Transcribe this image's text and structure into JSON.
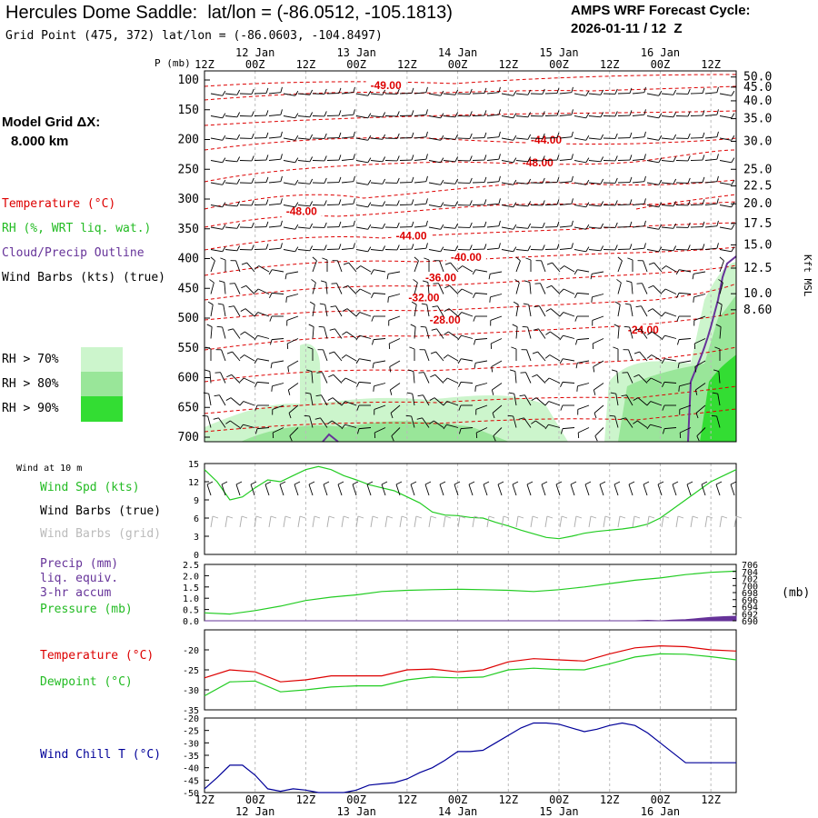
{
  "header": {
    "title": "Hercules Dome Saddle:  lat/lon = (-86.0512, -105.1813)",
    "grid_point": "Grid Point (475, 372) lat/lon = (-86.0603, -104.8497)",
    "cycle_label": "AMPS WRF Forecast Cycle:",
    "cycle_value": "2026-01-11 / 12  Z"
  },
  "model": {
    "grid_label": "Model Grid ΔX:",
    "grid_value": "8.000 km"
  },
  "legend_upper": {
    "temperature": "Temperature (°C)",
    "rh": "RH (%, WRT liq. wat.)",
    "cloud": "Cloud/Precip Outline",
    "wind": "Wind Barbs (kts) (true)",
    "rh70": "RH > 70%",
    "rh80": "RH > 80%",
    "rh90": "RH > 90%"
  },
  "legend_wind": {
    "title": "Wind at 10 m",
    "speed": "Wind Spd (kts)",
    "barbs_true": "Wind Barbs (true)",
    "barbs_grid": "Wind Barbs (grid)"
  },
  "legend_precip": {
    "precip": "Precip (mm)",
    "liq": "liq. equiv.",
    "accum": "3-hr accum",
    "pressure": "Pressure (mb)",
    "mb": "(mb)"
  },
  "legend_temp": {
    "temperature": "Temperature (°C)",
    "dewpoint": "Dewpoint (°C)"
  },
  "legend_chill": {
    "chill": "Wind Chill T (°C)"
  },
  "axis": {
    "p_label": "P (mb)",
    "kft_label": "Kft MSL",
    "top_hours": [
      "12Z",
      "00Z",
      "12Z",
      "00Z",
      "12Z",
      "00Z",
      "12Z",
      "00Z",
      "12Z",
      "00Z",
      "12Z"
    ],
    "date_labels": [
      "12 Jan",
      "13 Jan",
      "14 Jan",
      "15 Jan",
      "16 Jan"
    ]
  },
  "colors": {
    "temp": "#dd0000",
    "dew": "#22cc22",
    "rh70": "#ccf5cc",
    "rh80": "#99e699",
    "rh90": "#33dd33",
    "cloud": "#663399",
    "chill": "#000099",
    "grid": "#bbbbbb"
  },
  "chart_data": [
    {
      "type": "contour",
      "name": "cross-section",
      "x_hours": [
        0,
        126
      ],
      "p_ticks": [
        100,
        150,
        200,
        250,
        300,
        350,
        400,
        450,
        500,
        550,
        600,
        650,
        700
      ],
      "kft_ticks": [
        "50.0",
        "45.0",
        "40.0",
        "35.0",
        "30.0",
        "25.0",
        "22.5",
        "20.0",
        "17.5",
        "15.0",
        "12.5",
        "10.0",
        "8.60"
      ],
      "kft_tick_p": [
        95,
        112,
        135,
        165,
        203,
        250,
        278,
        308,
        341,
        377,
        416,
        459,
        486
      ],
      "temp_labels": [
        {
          "text": "-49.00",
          "hour": 43,
          "p": 115
        },
        {
          "text": "-44.00",
          "hour": 81,
          "p": 207
        },
        {
          "text": "-48.00",
          "hour": 79,
          "p": 245
        },
        {
          "text": "-48.00",
          "hour": 23,
          "p": 327
        },
        {
          "text": "-44.00",
          "hour": 49,
          "p": 368
        },
        {
          "text": "-40.00",
          "hour": 62,
          "p": 404
        },
        {
          "text": "-36.00",
          "hour": 56,
          "p": 438
        },
        {
          "text": "-32.00",
          "hour": 52,
          "p": 472
        },
        {
          "text": "-28.00",
          "hour": 57,
          "p": 509
        },
        {
          "text": "-24.00",
          "hour": 104,
          "p": 526
        }
      ]
    },
    {
      "type": "line",
      "name": "wind",
      "x_hours": [
        0,
        126
      ],
      "ylim": [
        0,
        15
      ],
      "yticks": [
        0,
        3,
        6,
        9,
        12,
        15
      ],
      "series": [
        {
          "name": "Wind Spd (kts)",
          "x": [
            0,
            3,
            6,
            9,
            12,
            15,
            18,
            21,
            24,
            27,
            30,
            33,
            36,
            39,
            42,
            45,
            48,
            51,
            54,
            57,
            60,
            63,
            66,
            69,
            72,
            75,
            78,
            81,
            84,
            87,
            90,
            93,
            96,
            99,
            102,
            105,
            108,
            111,
            114,
            117,
            120,
            123,
            126
          ],
          "values": [
            14,
            12,
            9,
            9.5,
            11,
            12.3,
            12,
            13,
            14,
            14.5,
            14,
            13,
            12.3,
            11.5,
            11,
            10.5,
            9.5,
            8.5,
            7,
            6.5,
            6.4,
            6.1,
            6,
            5.3,
            4.7,
            4,
            3.4,
            2.8,
            2.6,
            3,
            3.5,
            3.8,
            4,
            4.2,
            4.5,
            5,
            6,
            7.5,
            9,
            10.5,
            12,
            13,
            14
          ]
        }
      ]
    },
    {
      "type": "line",
      "name": "precip-pressure",
      "x_hours": [
        0,
        126
      ],
      "ylim": [
        0,
        2.5
      ],
      "yticks": [
        "2.5",
        "2.0",
        "1.5",
        "1.0",
        "0.5",
        "0.0"
      ],
      "right_ticks": [
        "706",
        "704",
        "702",
        "700",
        "698",
        "696",
        "694",
        "692",
        "690"
      ],
      "series": [
        {
          "name": "Pressure (mb)",
          "x": [
            0,
            6,
            12,
            18,
            24,
            30,
            36,
            42,
            48,
            54,
            60,
            66,
            72,
            78,
            84,
            90,
            96,
            102,
            108,
            114,
            120,
            126
          ],
          "values": [
            0.35,
            0.3,
            0.45,
            0.65,
            0.9,
            1.05,
            1.15,
            1.3,
            1.35,
            1.38,
            1.4,
            1.38,
            1.35,
            1.3,
            1.38,
            1.5,
            1.65,
            1.8,
            1.9,
            2.05,
            2.15,
            2.2
          ]
        },
        {
          "name": "Precip (mm)",
          "x": [
            0,
            102,
            105,
            108,
            111,
            114,
            117,
            120,
            123,
            126
          ],
          "values": [
            0,
            0,
            0.02,
            0,
            0.03,
            0.05,
            0.1,
            0.15,
            0.18,
            0.2
          ]
        }
      ]
    },
    {
      "type": "line",
      "name": "temperature",
      "x_hours": [
        0,
        126
      ],
      "ylim": [
        -35,
        -15
      ],
      "yticks": [
        -20,
        -25,
        -30,
        -35
      ],
      "series": [
        {
          "name": "Temperature (°C)",
          "x": [
            0,
            6,
            12,
            18,
            24,
            30,
            36,
            42,
            48,
            54,
            60,
            66,
            72,
            78,
            84,
            90,
            96,
            102,
            108,
            114,
            120,
            126
          ],
          "values": [
            -27,
            -25,
            -25.5,
            -28,
            -27.5,
            -26.5,
            -26.5,
            -26.5,
            -25,
            -24.8,
            -25.5,
            -25,
            -23,
            -22.2,
            -22.5,
            -22.8,
            -21,
            -19.5,
            -19,
            -19.2,
            -20,
            -20.3
          ]
        },
        {
          "name": "Dewpoint (°C)",
          "x": [
            0,
            6,
            12,
            18,
            24,
            30,
            36,
            42,
            48,
            54,
            60,
            66,
            72,
            78,
            84,
            90,
            96,
            102,
            108,
            114,
            120,
            126
          ],
          "values": [
            -31.5,
            -28,
            -27.8,
            -30.5,
            -30,
            -29.3,
            -29,
            -29,
            -27.5,
            -26.8,
            -27,
            -26.8,
            -25,
            -24.6,
            -24.9,
            -25,
            -23.5,
            -21.8,
            -21,
            -21.1,
            -21.7,
            -22.5
          ]
        }
      ]
    },
    {
      "type": "line",
      "name": "wind-chill",
      "x_hours": [
        0,
        126
      ],
      "ylim": [
        -50,
        -20
      ],
      "yticks": [
        -20,
        -25,
        -30,
        -35,
        -40,
        -45,
        -50
      ],
      "series": [
        {
          "name": "Wind Chill T (°C)",
          "x": [
            0,
            3,
            6,
            9,
            12,
            15,
            18,
            21,
            24,
            27,
            30,
            33,
            36,
            39,
            42,
            45,
            48,
            51,
            54,
            57,
            60,
            63,
            66,
            69,
            72,
            75,
            78,
            81,
            84,
            87,
            90,
            93,
            96,
            99,
            102,
            105,
            108,
            111,
            114,
            117,
            120,
            123,
            126
          ],
          "values": [
            -48.5,
            -44,
            -39,
            -39,
            -43,
            -48.5,
            -49.5,
            -48.5,
            -49,
            -50,
            -50,
            -50,
            -49,
            -47,
            -46.5,
            -46,
            -44.5,
            -42,
            -40,
            -37,
            -33.5,
            -33.5,
            -33,
            -30,
            -27,
            -24,
            -22,
            -22,
            -22.5,
            -24,
            -25.5,
            -24.5,
            -23,
            -22,
            -23,
            -26,
            -30,
            -34,
            -38,
            -38,
            -38,
            -38,
            -38
          ]
        }
      ]
    }
  ]
}
